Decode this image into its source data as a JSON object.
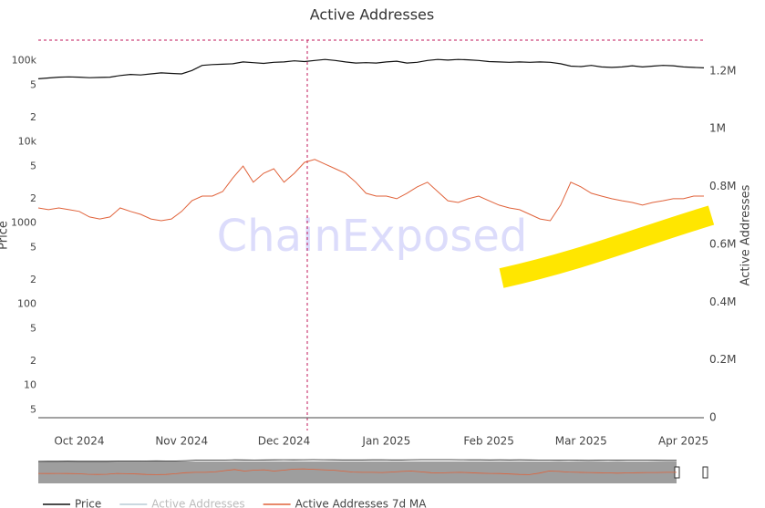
{
  "chart_data": {
    "type": "line",
    "title": "Active Addresses",
    "watermark": "ChainExposed",
    "y_label": "Price",
    "y2_label": "Active Addresses",
    "log_y": true,
    "categories": [
      null,
      null,
      null,
      null,
      "Oct 2024",
      null,
      null,
      null,
      null,
      null,
      null,
      null,
      null,
      null,
      "Nov 2024",
      null,
      null,
      null,
      null,
      null,
      null,
      null,
      null,
      null,
      "Dec 2024",
      null,
      null,
      null,
      null,
      null,
      null,
      null,
      null,
      null,
      "Jan 2025",
      null,
      null,
      null,
      null,
      null,
      null,
      null,
      null,
      null,
      "Feb 2025",
      null,
      null,
      null,
      null,
      null,
      null,
      null,
      null,
      "Mar 2025",
      null,
      null,
      null,
      null,
      null,
      null,
      null,
      null,
      null,
      "Apr 2025",
      null,
      null
    ],
    "ylim": [
      4,
      180000
    ],
    "yticks": [
      {
        "value": 100000,
        "label": "100k"
      },
      {
        "value": 50000,
        "label": "5"
      },
      {
        "value": 20000,
        "label": "2"
      },
      {
        "value": 10000,
        "label": "10k"
      },
      {
        "value": 5000,
        "label": "5"
      },
      {
        "value": 2000,
        "label": "2"
      },
      1000,
      {
        "value": 500,
        "label": "5"
      },
      {
        "value": 200,
        "label": "2"
      },
      100,
      {
        "value": 50,
        "label": "5"
      },
      {
        "value": 20,
        "label": "2"
      },
      10,
      5
    ],
    "y2lim": [
      0,
      1307000
    ],
    "y2ticks": [
      0,
      {
        "value": 200000,
        "label": "0.2M"
      },
      {
        "value": 400000,
        "label": "0.4M"
      },
      {
        "value": 600000,
        "label": "0.6M"
      },
      {
        "value": 800000,
        "label": "0.8M"
      },
      {
        "value": 1000000,
        "label": "1M"
      },
      {
        "value": 1200000,
        "label": "1.2M"
      }
    ],
    "series": [
      {
        "name": "Price",
        "color": "#111111",
        "values": [
          60000,
          61500,
          63000,
          63500,
          63000,
          62000,
          62500,
          63000,
          66000,
          68000,
          67000,
          69000,
          71000,
          70000,
          69000,
          76000,
          88000,
          90000,
          91000,
          92000,
          97000,
          95000,
          93000,
          96000,
          97000,
          100000,
          98000,
          101000,
          104000,
          101000,
          97000,
          94000,
          95000,
          94000,
          97000,
          99000,
          94000,
          96000,
          101000,
          104000,
          102000,
          104000,
          103000,
          101000,
          98000,
          97000,
          96000,
          97000,
          96000,
          97000,
          96000,
          92000,
          86000,
          85000,
          88000,
          84000,
          83000,
          84000,
          87000,
          84000,
          86000,
          88000,
          87000,
          84000,
          83000,
          82000
        ]
      },
      {
        "name": "Active Addresses",
        "color": "#b9cbd6",
        "visible": false
      },
      {
        "name": "Active Addresses 7d MA",
        "color": "#e0623a",
        "axis": "y2",
        "values": [
          726000,
          720000,
          726000,
          720000,
          714000,
          695000,
          688000,
          695000,
          726000,
          714000,
          704000,
          688000,
          682000,
          688000,
          714000,
          751000,
          767000,
          767000,
          783000,
          830000,
          871000,
          815000,
          846000,
          862000,
          815000,
          846000,
          884000,
          894000,
          878000,
          862000,
          846000,
          815000,
          777000,
          767000,
          767000,
          758000,
          777000,
          799000,
          815000,
          783000,
          751000,
          745000,
          758000,
          767000,
          751000,
          736000,
          726000,
          720000,
          704000,
          688000,
          682000,
          736000,
          815000,
          799000,
          777000,
          767000,
          758000,
          751000,
          745000,
          736000,
          745000,
          751000,
          758000,
          758000,
          767000,
          767000
        ]
      }
    ]
  }
}
